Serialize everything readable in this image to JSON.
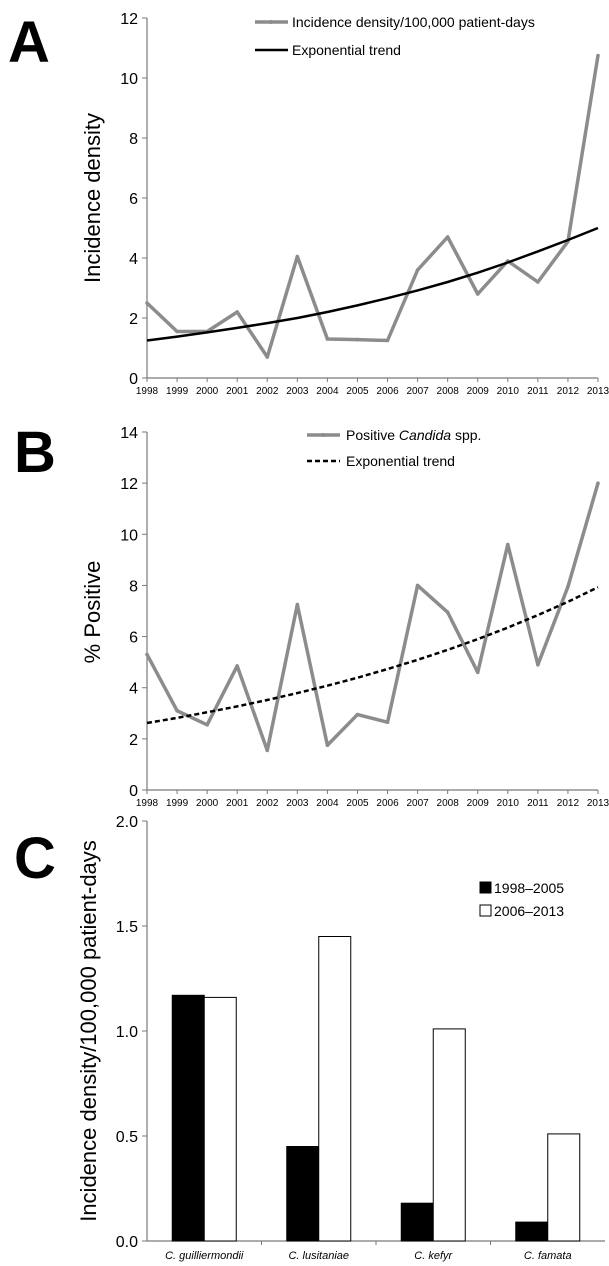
{
  "chart_data": [
    {
      "panel": "A",
      "type": "line",
      "ylabel": "Incidence density",
      "x": [
        1998,
        1999,
        2000,
        2001,
        2002,
        2003,
        2004,
        2005,
        2006,
        2007,
        2008,
        2009,
        2010,
        2011,
        2012,
        2013
      ],
      "ylim": [
        0,
        12
      ],
      "yticks": [
        0,
        2,
        4,
        6,
        8,
        10,
        12
      ],
      "series": [
        {
          "name": "Incidence density/100,000 patient-days",
          "values": [
            2.5,
            1.55,
            1.55,
            2.2,
            0.7,
            4.05,
            1.3,
            1.28,
            1.25,
            3.6,
            4.7,
            2.8,
            3.9,
            3.2,
            4.55,
            10.75
          ]
        },
        {
          "name": "Exponential trend",
          "trend": "exponential",
          "style": "solid",
          "values": [
            1.25,
            1.38,
            1.52,
            1.67,
            1.83,
            2.0,
            2.2,
            2.42,
            2.66,
            2.92,
            3.2,
            3.51,
            3.85,
            4.22,
            4.6,
            5.0
          ]
        }
      ],
      "legend_position": "top-right",
      "colors": {
        "data": "#8c8c8c",
        "trend": "#000000"
      }
    },
    {
      "panel": "B",
      "type": "line",
      "ylabel": "% Positive",
      "x": [
        1998,
        1999,
        2000,
        2001,
        2002,
        2003,
        2004,
        2005,
        2006,
        2007,
        2008,
        2009,
        2010,
        2011,
        2012,
        2013
      ],
      "ylim": [
        0,
        14
      ],
      "yticks": [
        0,
        2,
        4,
        6,
        8,
        10,
        12,
        14
      ],
      "series": [
        {
          "name": "Positive Candida spp.",
          "name_plain": "Positive ",
          "name_italic": "Candida",
          "name_suffix": " spp.",
          "values": [
            5.3,
            3.1,
            2.55,
            4.85,
            1.55,
            7.25,
            1.75,
            2.95,
            2.65,
            8.0,
            6.95,
            4.6,
            9.6,
            4.9,
            7.95,
            12.0
          ]
        },
        {
          "name": "Exponential trend",
          "trend": "exponential",
          "style": "dashed",
          "values": [
            2.62,
            2.82,
            3.04,
            3.27,
            3.52,
            3.79,
            4.08,
            4.39,
            4.73,
            5.09,
            5.48,
            5.9,
            6.35,
            6.84,
            7.36,
            7.93
          ]
        }
      ],
      "legend_position": "top-right",
      "colors": {
        "data": "#8c8c8c",
        "trend": "#000000"
      }
    },
    {
      "panel": "C",
      "type": "bar",
      "ylabel": "Incidence density/100,000 patient-days",
      "categories": [
        "C. guilliermondii",
        "C. lusitaniae",
        "C. kefyr",
        "C. famata"
      ],
      "ylim": [
        0,
        2.0
      ],
      "yticks": [
        "0.0",
        "0.5",
        "1.0",
        "1.5",
        "2.0"
      ],
      "series": [
        {
          "name": "1998–2005",
          "values": [
            1.17,
            0.45,
            0.18,
            0.09
          ]
        },
        {
          "name": "2006–2013",
          "values": [
            1.16,
            1.45,
            1.01,
            0.51
          ]
        }
      ],
      "legend_position": "top-right",
      "colors": {
        "1998–2005": "#000000",
        "2006–2013": "#ffffff"
      }
    }
  ]
}
